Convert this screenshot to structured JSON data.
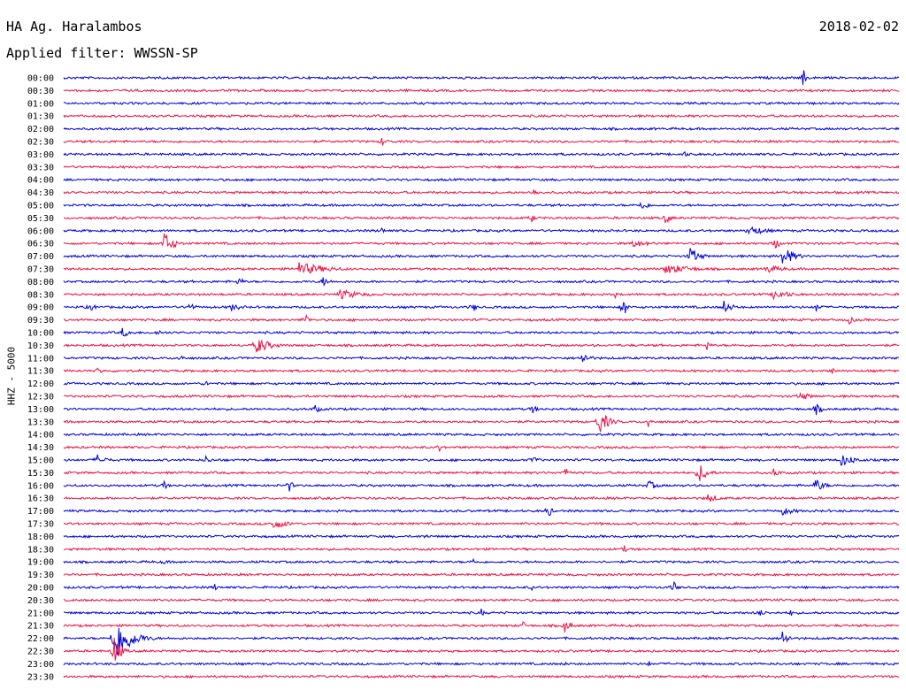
{
  "header": {
    "station": "HA Ag. Haralambos",
    "date": "2018-02-02",
    "filter": "Applied filter: WWSSN-SP"
  },
  "chart_data": {
    "type": "line",
    "title": "HA Ag. Haralambos",
    "ylabel": "HHZ - 5000",
    "row_labels": [
      "00:00",
      "00:30",
      "01:00",
      "01:30",
      "02:00",
      "02:30",
      "03:00",
      "03:30",
      "04:00",
      "04:30",
      "05:00",
      "05:30",
      "06:00",
      "06:30",
      "07:00",
      "07:30",
      "08:00",
      "08:30",
      "09:00",
      "09:30",
      "10:00",
      "10:30",
      "11:00",
      "11:30",
      "12:00",
      "12:30",
      "13:00",
      "13:30",
      "14:00",
      "14:30",
      "15:00",
      "15:30",
      "16:00",
      "16:30",
      "17:00",
      "17:30",
      "18:00",
      "18:30",
      "19:00",
      "19:30",
      "20:00",
      "20:30",
      "21:00",
      "21:30",
      "22:00",
      "22:30",
      "23:00",
      "23:30"
    ],
    "row_colors": [
      "#0000dd",
      "#ee1144"
    ],
    "grid": false,
    "bursts": [
      {
        "row": 0,
        "x": 0.885,
        "amp": 12,
        "dur": 0.01
      },
      {
        "row": 5,
        "x": 0.38,
        "amp": 6,
        "dur": 0.02
      },
      {
        "row": 6,
        "x": 0.74,
        "amp": 4,
        "dur": 0.03
      },
      {
        "row": 9,
        "x": 0.56,
        "amp": 5,
        "dur": 0.03
      },
      {
        "row": 10,
        "x": 0.69,
        "amp": 6,
        "dur": 0.03
      },
      {
        "row": 11,
        "x": 0.56,
        "amp": 6,
        "dur": 0.01
      },
      {
        "row": 11,
        "x": 0.72,
        "amp": 7,
        "dur": 0.02
      },
      {
        "row": 12,
        "x": 0.82,
        "amp": 6,
        "dur": 0.06
      },
      {
        "row": 12,
        "x": 0.38,
        "amp": 5,
        "dur": 0.01
      },
      {
        "row": 13,
        "x": 0.12,
        "amp": 14,
        "dur": 0.03
      },
      {
        "row": 13,
        "x": 0.85,
        "amp": 8,
        "dur": 0.02
      },
      {
        "row": 13,
        "x": 0.68,
        "amp": 5,
        "dur": 0.06
      },
      {
        "row": 14,
        "x": 0.75,
        "amp": 11,
        "dur": 0.03
      },
      {
        "row": 14,
        "x": 0.86,
        "amp": 12,
        "dur": 0.04
      },
      {
        "row": 15,
        "x": 0.28,
        "amp": 8,
        "dur": 0.1
      },
      {
        "row": 15,
        "x": 0.72,
        "amp": 6,
        "dur": 0.1
      },
      {
        "row": 15,
        "x": 0.84,
        "amp": 5,
        "dur": 0.07
      },
      {
        "row": 16,
        "x": 0.21,
        "amp": 8,
        "dur": 0.01
      },
      {
        "row": 16,
        "x": 0.31,
        "amp": 7,
        "dur": 0.02
      },
      {
        "row": 17,
        "x": 0.33,
        "amp": 6,
        "dur": 0.08
      },
      {
        "row": 17,
        "x": 0.85,
        "amp": 6,
        "dur": 0.06
      },
      {
        "row": 17,
        "x": 0.66,
        "amp": 5,
        "dur": 0.01
      },
      {
        "row": 18,
        "x": 0.03,
        "amp": 6,
        "dur": 0.02
      },
      {
        "row": 18,
        "x": 0.15,
        "amp": 6,
        "dur": 0.02
      },
      {
        "row": 18,
        "x": 0.2,
        "amp": 5,
        "dur": 0.04
      },
      {
        "row": 18,
        "x": 0.49,
        "amp": 7,
        "dur": 0.01
      },
      {
        "row": 18,
        "x": 0.67,
        "amp": 14,
        "dur": 0.01
      },
      {
        "row": 18,
        "x": 0.79,
        "amp": 8,
        "dur": 0.03
      },
      {
        "row": 18,
        "x": 0.9,
        "amp": 6,
        "dur": 0.02
      },
      {
        "row": 19,
        "x": 0.29,
        "amp": 8,
        "dur": 0.01
      },
      {
        "row": 19,
        "x": 0.94,
        "amp": 5,
        "dur": 0.02
      },
      {
        "row": 20,
        "x": 0.07,
        "amp": 6,
        "dur": 0.03
      },
      {
        "row": 20,
        "x": 0.11,
        "amp": 4,
        "dur": 0.03
      },
      {
        "row": 21,
        "x": 0.23,
        "amp": 10,
        "dur": 0.05
      },
      {
        "row": 21,
        "x": 0.77,
        "amp": 7,
        "dur": 0.01
      },
      {
        "row": 22,
        "x": 0.14,
        "amp": 7,
        "dur": 0.01
      },
      {
        "row": 22,
        "x": 0.62,
        "amp": 7,
        "dur": 0.03
      },
      {
        "row": 23,
        "x": 0.04,
        "amp": 5,
        "dur": 0.02
      },
      {
        "row": 23,
        "x": 0.92,
        "amp": 5,
        "dur": 0.01
      },
      {
        "row": 24,
        "x": 0.17,
        "amp": 5,
        "dur": 0.01
      },
      {
        "row": 25,
        "x": 0.88,
        "amp": 6,
        "dur": 0.04
      },
      {
        "row": 26,
        "x": 0.3,
        "amp": 6,
        "dur": 0.02
      },
      {
        "row": 26,
        "x": 0.56,
        "amp": 6,
        "dur": 0.02
      },
      {
        "row": 26,
        "x": 0.9,
        "amp": 8,
        "dur": 0.02
      },
      {
        "row": 27,
        "x": 0.64,
        "amp": 16,
        "dur": 0.03
      },
      {
        "row": 27,
        "x": 0.7,
        "amp": 8,
        "dur": 0.01
      },
      {
        "row": 29,
        "x": 0.45,
        "amp": 6,
        "dur": 0.01
      },
      {
        "row": 30,
        "x": 0.04,
        "amp": 7,
        "dur": 0.03
      },
      {
        "row": 30,
        "x": 0.17,
        "amp": 5,
        "dur": 0.02
      },
      {
        "row": 30,
        "x": 0.56,
        "amp": 6,
        "dur": 0.02
      },
      {
        "row": 30,
        "x": 0.93,
        "amp": 8,
        "dur": 0.05
      },
      {
        "row": 31,
        "x": 0.6,
        "amp": 6,
        "dur": 0.02
      },
      {
        "row": 31,
        "x": 0.76,
        "amp": 12,
        "dur": 0.03
      },
      {
        "row": 31,
        "x": 0.85,
        "amp": 6,
        "dur": 0.02
      },
      {
        "row": 32,
        "x": 0.12,
        "amp": 7,
        "dur": 0.01
      },
      {
        "row": 32,
        "x": 0.27,
        "amp": 8,
        "dur": 0.01
      },
      {
        "row": 32,
        "x": 0.7,
        "amp": 6,
        "dur": 0.03
      },
      {
        "row": 32,
        "x": 0.9,
        "amp": 8,
        "dur": 0.03
      },
      {
        "row": 33,
        "x": 0.77,
        "amp": 6,
        "dur": 0.04
      },
      {
        "row": 34,
        "x": 0.58,
        "amp": 10,
        "dur": 0.01
      },
      {
        "row": 34,
        "x": 0.86,
        "amp": 5,
        "dur": 0.05
      },
      {
        "row": 35,
        "x": 0.25,
        "amp": 7,
        "dur": 0.05
      },
      {
        "row": 35,
        "x": 0.9,
        "amp": 5,
        "dur": 0.01
      },
      {
        "row": 36,
        "x": 0.43,
        "amp": 4,
        "dur": 0.02
      },
      {
        "row": 37,
        "x": 0.67,
        "amp": 6,
        "dur": 0.01
      },
      {
        "row": 38,
        "x": 0.12,
        "amp": 5,
        "dur": 0.01
      },
      {
        "row": 38,
        "x": 0.49,
        "amp": 5,
        "dur": 0.01
      },
      {
        "row": 40,
        "x": 0.18,
        "amp": 6,
        "dur": 0.01
      },
      {
        "row": 40,
        "x": 0.73,
        "amp": 9,
        "dur": 0.01
      },
      {
        "row": 40,
        "x": 0.56,
        "amp": 4,
        "dur": 0.01
      },
      {
        "row": 42,
        "x": 0.5,
        "amp": 5,
        "dur": 0.01
      },
      {
        "row": 42,
        "x": 0.83,
        "amp": 5,
        "dur": 0.03
      },
      {
        "row": 42,
        "x": 0.87,
        "amp": 5,
        "dur": 0.01
      },
      {
        "row": 43,
        "x": 0.6,
        "amp": 8,
        "dur": 0.02
      },
      {
        "row": 43,
        "x": 0.55,
        "amp": 5,
        "dur": 0.01
      },
      {
        "row": 44,
        "x": 0.06,
        "amp": 30,
        "dur": 0.05
      },
      {
        "row": 44,
        "x": 0.86,
        "amp": 11,
        "dur": 0.02
      },
      {
        "row": 45,
        "x": 0.06,
        "amp": 20,
        "dur": 0.02
      },
      {
        "row": 46,
        "x": 0.6,
        "amp": 4,
        "dur": 0.01
      },
      {
        "row": 46,
        "x": 0.7,
        "amp": 4,
        "dur": 0.01
      }
    ]
  }
}
